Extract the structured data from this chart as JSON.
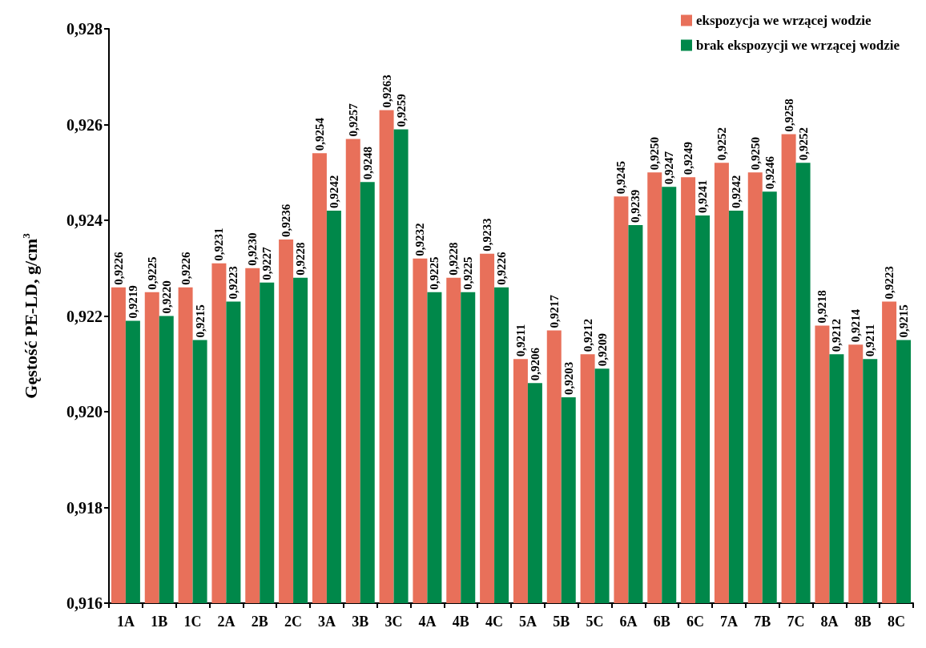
{
  "chart_data": {
    "type": "bar",
    "ylabel": "Gęstość PE-LD, g/cm$^{3}$",
    "categories": [
      "1A",
      "1B",
      "1C",
      "2A",
      "2B",
      "2C",
      "3A",
      "3B",
      "3C",
      "4A",
      "4B",
      "4C",
      "5A",
      "5B",
      "5C",
      "6A",
      "6B",
      "6C",
      "7A",
      "7B",
      "7C",
      "8A",
      "8B",
      "8C"
    ],
    "series": [
      {
        "name": "ekspozycja we wrzącej wodzie",
        "color": "#e8705a",
        "values": [
          0.9226,
          0.9225,
          0.9226,
          0.9231,
          0.923,
          0.9236,
          0.9254,
          0.9257,
          0.9263,
          0.9232,
          0.9228,
          0.9233,
          0.9211,
          0.9217,
          0.9212,
          0.9245,
          0.925,
          0.9249,
          0.9252,
          0.925,
          0.9258,
          0.9218,
          0.9214,
          0.9223
        ],
        "value_labels": [
          "0,9226",
          "0,9225",
          "0,9226",
          "0,9231",
          "0,9230",
          "0,9236",
          "0,9254",
          "0,9257",
          "0,9263",
          "0,9232",
          "0,9228",
          "0,9233",
          "0,9211",
          "0,9217",
          "0,9212",
          "0,9245",
          "0,9250",
          "0,9249",
          "0,9252",
          "0,9250",
          "0,9258",
          "0,9218",
          "0,9214",
          "0,9223"
        ]
      },
      {
        "name": "brak ekspozycji we wrzącej wodzie",
        "color": "#00884a",
        "values": [
          0.9219,
          0.922,
          0.9215,
          0.9223,
          0.9227,
          0.9228,
          0.9242,
          0.9248,
          0.9259,
          0.9225,
          0.9225,
          0.9226,
          0.9206,
          0.9203,
          0.9209,
          0.9239,
          0.9247,
          0.9241,
          0.9242,
          0.9246,
          0.9252,
          0.9212,
          0.9211,
          0.9215
        ],
        "value_labels": [
          "0,9219",
          "0,9220",
          "0,9215",
          "0,9223",
          "0,9227",
          "0,9228",
          "0,9242",
          "0,9248",
          "0,9259",
          "0,9225",
          "0,9225",
          "0,9226",
          "0,9206",
          "0,9203",
          "0,9209",
          "0,9239",
          "0,9247",
          "0,9241",
          "0,9242",
          "0,9246",
          "0,9252",
          "0,9212",
          "0,9211",
          "0,9215"
        ]
      }
    ],
    "ylim": [
      0.916,
      0.928
    ],
    "yticks": [
      {
        "value": 0.916,
        "label": "0,916"
      },
      {
        "value": 0.918,
        "label": "0,918"
      },
      {
        "value": 0.92,
        "label": "0,920"
      },
      {
        "value": 0.922,
        "label": "0,922"
      },
      {
        "value": 0.924,
        "label": "0,924"
      },
      {
        "value": 0.926,
        "label": "0,926"
      },
      {
        "value": 0.928,
        "label": "0,928"
      }
    ],
    "grid": false,
    "legend": "top right"
  }
}
